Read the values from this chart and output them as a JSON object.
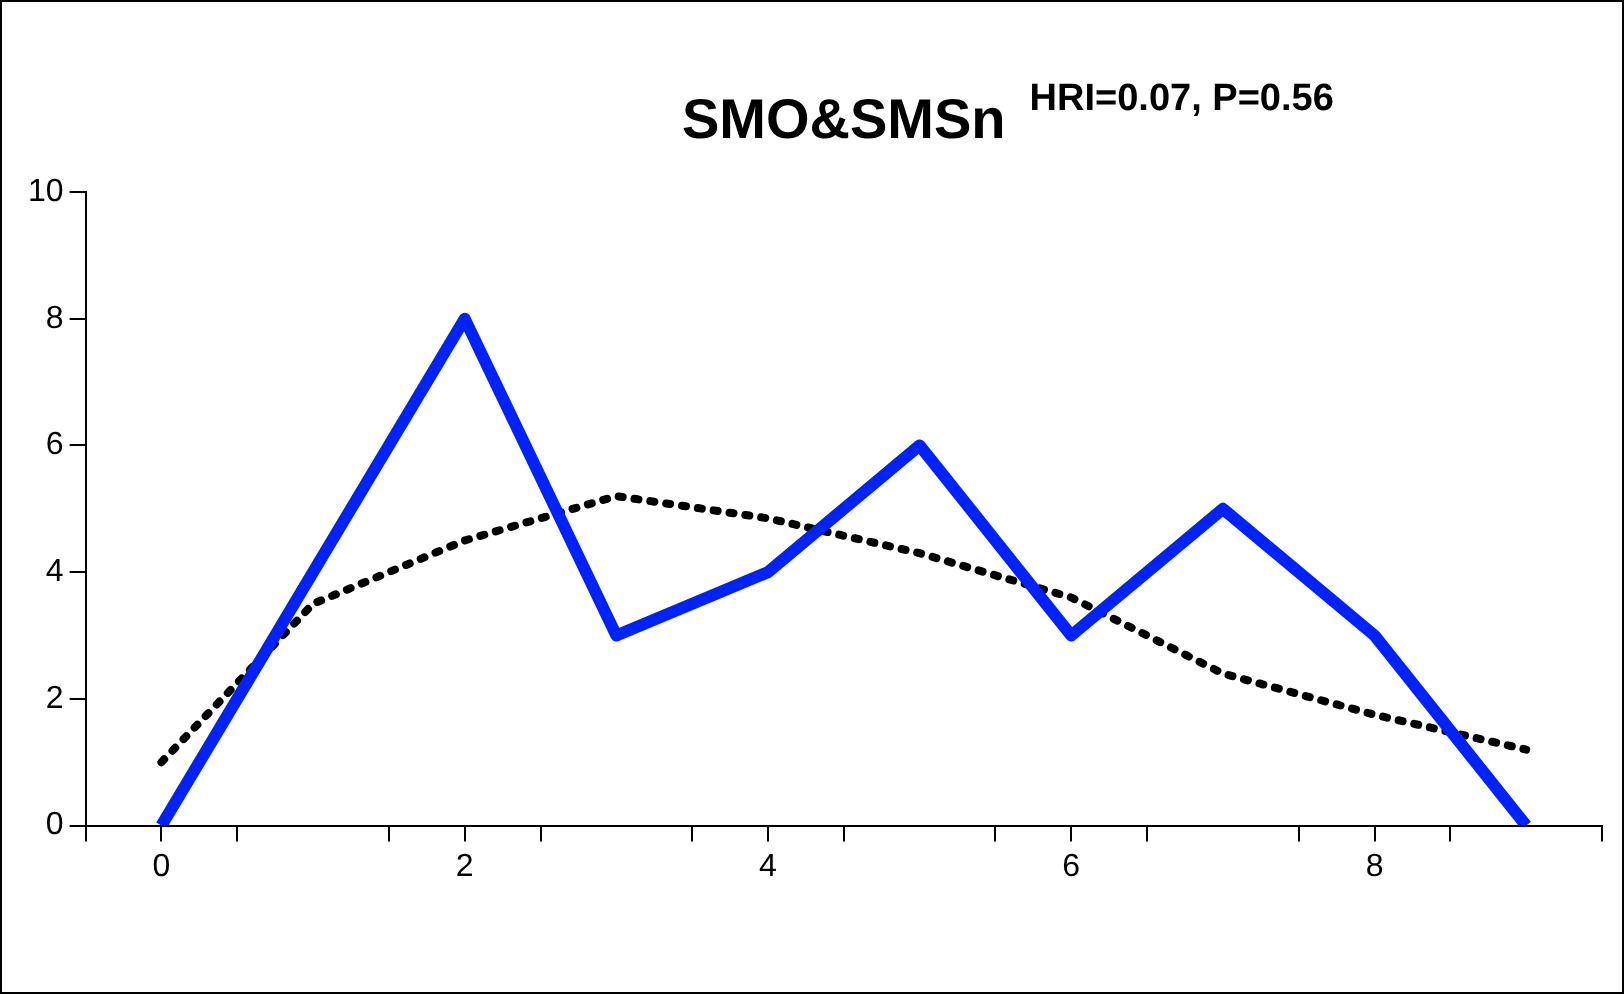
{
  "chart_data": {
    "type": "line",
    "title": "SMO&SMSn",
    "annotations": [
      "HRI=0.07, P=0.56"
    ],
    "x": [
      0,
      1,
      2,
      3,
      4,
      5,
      6,
      7,
      8,
      9
    ],
    "xlim": [
      -0.5,
      9.5
    ],
    "xticks": [
      {
        "value": -0.5,
        "label": null
      },
      0,
      {
        "value": 0.5,
        "label": null
      },
      {
        "value": 1.5,
        "label": null
      },
      2,
      {
        "value": 2.5,
        "label": null
      },
      {
        "value": 3.5,
        "label": null
      },
      4,
      {
        "value": 4.5,
        "label": null
      },
      {
        "value": 5.5,
        "label": null
      },
      6,
      {
        "value": 6.5,
        "label": null
      },
      {
        "value": 7.5,
        "label": null
      },
      8,
      {
        "value": 8.5,
        "label": null
      },
      {
        "value": 9.5,
        "label": null
      }
    ],
    "ylim": [
      0,
      10
    ],
    "yticks": [
      0,
      2,
      4,
      6,
      8,
      10
    ],
    "grid": false,
    "legend": false,
    "marker": "none",
    "series": [
      {
        "color": "#0022ff",
        "line_style": "solid",
        "values": [
          0,
          4,
          8,
          3,
          4,
          6,
          3,
          5,
          3,
          0
        ]
      },
      {
        "type": "line",
        "color": "#000000",
        "line_style": "dotted",
        "x": [
          0,
          1,
          2,
          3,
          4,
          5,
          6,
          7,
          8,
          9
        ],
        "values": [
          1,
          3.5,
          4.5,
          5.2,
          4.85,
          4.3,
          3.6,
          2.4,
          1.75,
          1.2
        ]
      }
    ]
  }
}
